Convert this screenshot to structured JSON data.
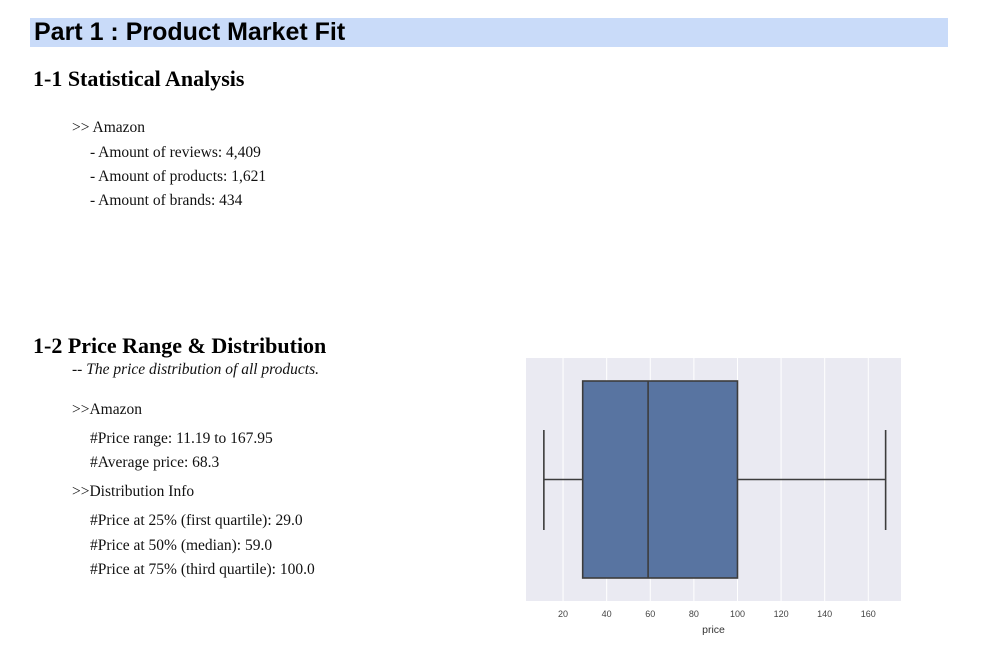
{
  "part_title": "Part 1 : Product Market Fit",
  "section1": {
    "title": "1-1 Statistical Analysis",
    "platform": ">> Amazon",
    "items": [
      "-  Amount of reviews: 4,409",
      "-  Amount of products: 1,621",
      "-  Amount of brands: 434"
    ]
  },
  "section2": {
    "title": "1-2 Price Range & Distribution",
    "subtitle": "-- The price distribution of all products.",
    "platform": ">>Amazon",
    "price_range": "#Price range: 11.19 to 167.95",
    "average_price": "#Average price: 68.3",
    "distribution_heading": ">>Distribution Info",
    "quartiles": [
      "#Price at 25% (first quartile): 29.0",
      "#Price at 50% (median): 59.0",
      "#Price at 75% (third quartile): 100.0"
    ]
  },
  "chart_data": {
    "type": "boxplot",
    "xlabel": "price",
    "min": 11.19,
    "q1": 29.0,
    "median": 59.0,
    "q3": 100.0,
    "max": 167.95,
    "xlim": [
      3,
      175
    ],
    "xticks": [
      20,
      40,
      60,
      80,
      100,
      120,
      140,
      160
    ],
    "grid": true,
    "colors": {
      "background": "#eaeaf2",
      "box": "#5874a1",
      "line": "#3c3c3c",
      "grid": "#ffffff"
    }
  }
}
